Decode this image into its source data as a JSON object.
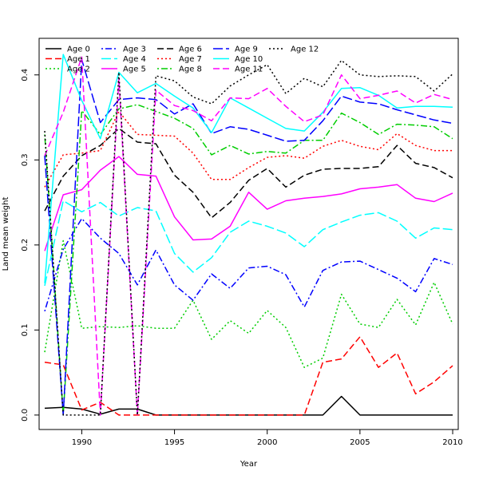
{
  "chart_data": {
    "type": "line",
    "xlabel": "Year",
    "ylabel": "Land mean weight",
    "xlim": [
      1987.7,
      2010.3
    ],
    "ylim": [
      -0.017,
      0.443
    ],
    "xticks": [
      1990,
      1995,
      2000,
      2005,
      2010
    ],
    "yticks": [
      0.0,
      0.1,
      0.2,
      0.3,
      0.4
    ],
    "ytick_labels": [
      "0.0",
      "0.1",
      "0.2",
      "0.3",
      "0.4"
    ],
    "legend_position": "top-left",
    "x": [
      1988,
      1989,
      1990,
      1991,
      1992,
      1993,
      1994,
      1995,
      1996,
      1997,
      1998,
      1999,
      2000,
      2001,
      2002,
      2003,
      2004,
      2005,
      2006,
      2007,
      2008,
      2009,
      2010
    ],
    "series": [
      {
        "name": "Age 0",
        "color": "#000000",
        "dash": "solid",
        "values": [
          0.008,
          0.009,
          0.007,
          0.001,
          0.007,
          0.007,
          0.0,
          0.0,
          0.0,
          0.0,
          0.0,
          0.0,
          0.0,
          0.0,
          0.0,
          0.0,
          0.022,
          0.0,
          0.0,
          0.0,
          0.0,
          0.0,
          0.0
        ]
      },
      {
        "name": "Age 1",
        "color": "#ff0000",
        "dash": "dashed",
        "values": [
          0.062,
          0.059,
          0.006,
          0.015,
          0.0,
          0.0,
          0.0,
          0.0,
          0.0,
          0.0,
          0.0,
          0.0,
          0.0,
          0.0,
          0.0,
          0.062,
          0.066,
          0.092,
          0.056,
          0.073,
          0.025,
          0.039,
          0.058
        ]
      },
      {
        "name": "Age 2",
        "color": "#00cd00",
        "dash": "dotted",
        "values": [
          0.074,
          0.205,
          0.102,
          0.104,
          0.103,
          0.105,
          0.102,
          0.102,
          0.135,
          0.089,
          0.111,
          0.096,
          0.123,
          0.103,
          0.056,
          0.067,
          0.142,
          0.107,
          0.103,
          0.136,
          0.106,
          0.156,
          0.107
        ]
      },
      {
        "name": "Age 3",
        "color": "#0000ff",
        "dash": "dotdash",
        "values": [
          0.122,
          0.195,
          0.231,
          0.208,
          0.19,
          0.153,
          0.194,
          0.153,
          0.135,
          0.166,
          0.149,
          0.173,
          0.175,
          0.165,
          0.127,
          0.17,
          0.18,
          0.181,
          0.171,
          0.161,
          0.145,
          0.184,
          0.177
        ]
      },
      {
        "name": "Age 4",
        "color": "#00ffff",
        "dash": "longdash",
        "values": [
          0.152,
          0.252,
          0.239,
          0.25,
          0.234,
          0.244,
          0.24,
          0.19,
          0.168,
          0.185,
          0.215,
          0.228,
          0.222,
          0.214,
          0.198,
          0.218,
          0.227,
          0.235,
          0.238,
          0.228,
          0.208,
          0.22,
          0.218
        ]
      },
      {
        "name": "Age 5",
        "color": "#ff00ff",
        "dash": "solid",
        "values": [
          0.193,
          0.259,
          0.265,
          0.288,
          0.304,
          0.283,
          0.281,
          0.233,
          0.206,
          0.207,
          0.222,
          0.262,
          0.242,
          0.252,
          0.255,
          0.257,
          0.26,
          0.266,
          0.268,
          0.271,
          0.255,
          0.251,
          0.261
        ]
      },
      {
        "name": "Age 6",
        "color": "#000000",
        "dash": "dashed",
        "values": [
          0.24,
          0.281,
          0.305,
          0.317,
          0.337,
          0.321,
          0.319,
          0.282,
          0.262,
          0.232,
          0.25,
          0.276,
          0.29,
          0.268,
          0.282,
          0.289,
          0.29,
          0.29,
          0.292,
          0.317,
          0.296,
          0.291,
          0.279
        ]
      },
      {
        "name": "Age 7",
        "color": "#ff0000",
        "dash": "dotted",
        "values": [
          0.268,
          0.306,
          0.308,
          0.311,
          0.357,
          0.33,
          0.329,
          0.328,
          0.308,
          0.277,
          0.277,
          0.291,
          0.303,
          0.305,
          0.302,
          0.316,
          0.323,
          0.316,
          0.312,
          0.331,
          0.317,
          0.311,
          0.311
        ]
      },
      {
        "name": "Age 8",
        "color": "#00cd00",
        "dash": "dotdash",
        "values": [
          0.33,
          0.0,
          0.358,
          0.33,
          0.36,
          0.365,
          0.357,
          0.349,
          0.337,
          0.306,
          0.317,
          0.307,
          0.31,
          0.308,
          0.323,
          0.323,
          0.355,
          0.344,
          0.33,
          0.342,
          0.341,
          0.339,
          0.325
        ]
      },
      {
        "name": "Age 9",
        "color": "#0000ff",
        "dash": "longdash",
        "values": [
          0.305,
          0.0,
          0.418,
          0.344,
          0.371,
          0.373,
          0.371,
          0.354,
          0.366,
          0.331,
          0.339,
          0.336,
          0.329,
          0.322,
          0.323,
          0.346,
          0.375,
          0.368,
          0.366,
          0.359,
          0.353,
          0.347,
          0.343
        ]
      },
      {
        "name": "Age 10",
        "color": "#00ffff",
        "dash": "solid",
        "values": [
          0.155,
          0.424,
          0.37,
          0.325,
          0.403,
          0.379,
          0.39,
          0.375,
          0.361,
          0.332,
          0.373,
          0.361,
          0.349,
          0.337,
          0.334,
          0.356,
          0.384,
          0.385,
          0.376,
          0.361,
          0.363,
          0.363,
          0.362
        ]
      },
      {
        "name": "Age 11",
        "color": "#ff00ff",
        "dash": "dashed",
        "values": [
          0.305,
          0.356,
          0.421,
          0.0,
          0.395,
          0.0,
          0.382,
          0.364,
          0.358,
          0.346,
          0.373,
          0.372,
          0.384,
          0.363,
          0.345,
          0.353,
          0.4,
          0.372,
          0.376,
          0.381,
          0.367,
          0.377,
          0.371
        ]
      },
      {
        "name": "Age 12",
        "color": "#000000",
        "dash": "dotted",
        "values": [
          0.334,
          0.0,
          0.0,
          0.0,
          0.403,
          0.0,
          0.399,
          0.393,
          0.374,
          0.366,
          0.387,
          0.4,
          0.412,
          0.378,
          0.396,
          0.386,
          0.417,
          0.4,
          0.398,
          0.399,
          0.398,
          0.381,
          0.401
        ]
      }
    ]
  }
}
